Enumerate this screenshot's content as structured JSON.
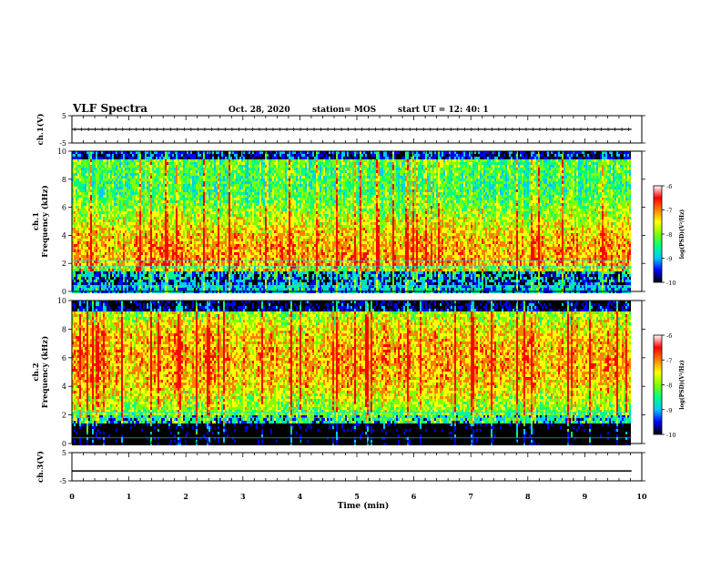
{
  "header": {
    "title": "VLF Spectra",
    "date": "Oct. 28, 2020",
    "station": "station= MOS",
    "start": "start  UT =   12: 40: 1"
  },
  "colorbar": {
    "label": "log(PSD)(V²/Hz)",
    "ticks": [
      "-6",
      "-7",
      "-8",
      "-9",
      "-10"
    ],
    "stops": [
      "#000000",
      "#0000ff",
      "#00c8ff",
      "#00ff80",
      "#80ff00",
      "#ffff00",
      "#ff8000",
      "#ff0000",
      "#ffffff"
    ]
  },
  "xaxis": {
    "label": "Time  (min)",
    "ticks": [
      "0",
      "1",
      "2",
      "3",
      "4",
      "5",
      "6",
      "7",
      "8",
      "9",
      "10"
    ],
    "range": [
      0,
      10
    ]
  },
  "chart_data": [
    {
      "type": "line",
      "title": "",
      "ylabel": "ch.1(V)",
      "ylim": [
        -5,
        5
      ],
      "yticks": [
        "5",
        "-5"
      ],
      "xlim": [
        0,
        10
      ],
      "series": [
        {
          "x": [
            0,
            9.82
          ],
          "y": [
            0,
            0
          ]
        }
      ]
    },
    {
      "type": "heatmap",
      "ylabel": "ch.1\nFrequency  (kHz)",
      "ylim": [
        0,
        10
      ],
      "yticks": [
        "0",
        "2",
        "4",
        "6",
        "8",
        "10"
      ],
      "xlim": [
        0,
        10
      ],
      "data_end_min": 9.82,
      "z_range": [
        -10,
        -6
      ],
      "z_unit": "log(PSD)(V²/Hz)"
    },
    {
      "type": "heatmap",
      "ylabel": "ch.2\nFrequency  (kHz)",
      "ylim": [
        0,
        10
      ],
      "yticks": [
        "0",
        "2",
        "4",
        "6",
        "8",
        "10"
      ],
      "xlim": [
        0,
        10
      ],
      "data_end_min": 9.82,
      "z_range": [
        -10,
        -6
      ],
      "z_unit": "log(PSD)(V²/Hz)"
    },
    {
      "type": "line",
      "ylabel": "ch.3(V)",
      "ylim": [
        -5,
        5
      ],
      "yticks": [
        "5",
        "-5"
      ],
      "xlim": [
        0,
        10
      ],
      "series": [
        {
          "x": [
            0,
            9.82
          ],
          "y": [
            -1.5,
            -1.5
          ]
        }
      ]
    }
  ]
}
